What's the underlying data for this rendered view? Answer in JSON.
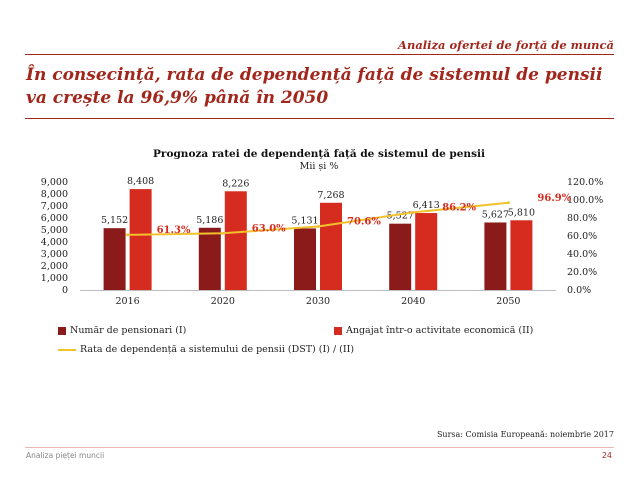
{
  "header": {
    "section_title": "Analiza ofertei de forță de muncă",
    "headline": "În consecință, rata de dependență față de sistemul de pensii va crește la 96,9% până în 2050"
  },
  "colors": {
    "accent": "#a1271c",
    "pensioners": "#8b1a1a",
    "employed": "#d62b1f",
    "ratio_line": "#f2c12e"
  },
  "chart_data": {
    "type": "bar",
    "title": "Prognoza ratei de dependență față de sistemul de pensii",
    "subtitle": "Mii și %",
    "categories": [
      "2016",
      "2020",
      "2030",
      "2040",
      "2050"
    ],
    "series": [
      {
        "name": "Număr de pensionari (I)",
        "type": "bar",
        "axis": "left",
        "values": [
          5152,
          5186,
          5131,
          5527,
          5627
        ],
        "labels": [
          "5,152",
          "5,186",
          "5,131",
          "5,527",
          "5,627"
        ]
      },
      {
        "name": "Angajat într-o activitate economică (II)",
        "type": "bar",
        "axis": "left",
        "values": [
          8408,
          8226,
          7268,
          6413,
          5810
        ],
        "labels": [
          "8,408",
          "8,226",
          "7,268",
          "6,413",
          "5,810"
        ]
      },
      {
        "name": "Rata de dependență a sistemului de pensii (DST) (I) / (II)",
        "type": "line",
        "axis": "right",
        "values": [
          61.3,
          63.0,
          70.6,
          86.2,
          96.9
        ],
        "labels": [
          "61.3%",
          "63.0%",
          "70.6%",
          "86.2%",
          "96.9%"
        ]
      }
    ],
    "y_left": {
      "min": 0,
      "max": 9000,
      "ticks": [
        "0",
        "1,000",
        "2,000",
        "3,000",
        "4,000",
        "5,000",
        "6,000",
        "7,000",
        "8,000",
        "9,000"
      ]
    },
    "y_right": {
      "min": 0,
      "max": 120,
      "ticks": [
        "0.0%",
        "20.0%",
        "40.0%",
        "60.0%",
        "80.0%",
        "100.0%",
        "120.0%"
      ]
    },
    "grid": false,
    "legend_position": "bottom"
  },
  "footer": {
    "source": "Sursa: Comisia Europeană: noiembrie 2017",
    "left": "Analiza pieței muncii",
    "page": "24"
  }
}
